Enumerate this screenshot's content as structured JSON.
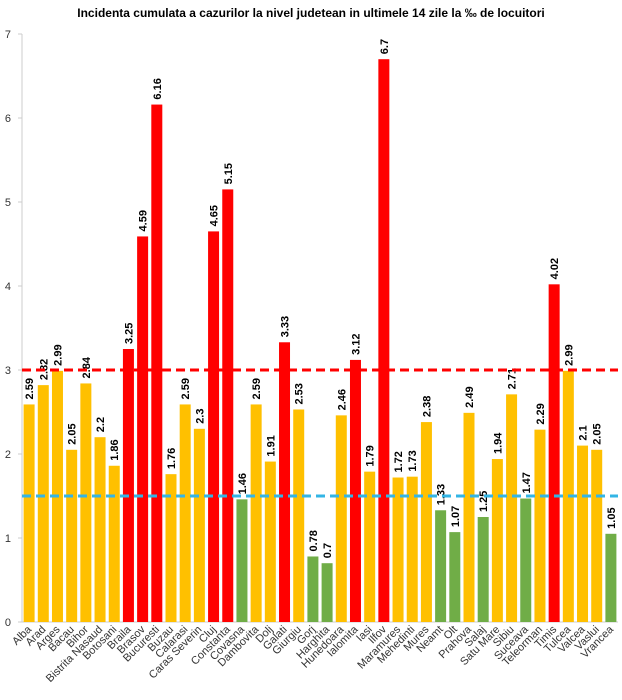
{
  "chart_data": {
    "type": "bar",
    "title": "Incidenta cumulata a cazurilor la nivel judetean in ultimele 14 zile la ‰ de locuitori",
    "categories": [
      "Alba",
      "Arad",
      "Arges",
      "Bacau",
      "Bihor",
      "Bistrita Nasaud",
      "Botosani",
      "Braila",
      "Brasov",
      "Bucuresti",
      "Buzau",
      "Calarasi",
      "Caras Severin",
      "Cluj",
      "Constanta",
      "Covasna",
      "Dambovita",
      "Dolj",
      "Galati",
      "Giurgiu",
      "Gorj",
      "Harghita",
      "Hunedoara",
      "Ialomita",
      "Iasi",
      "Ilfov",
      "Maramures",
      "Mehedinti",
      "Mures",
      "Neamt",
      "Olt",
      "Prahova",
      "Salaj",
      "Satu Mare",
      "Sibiu",
      "Suceava",
      "Teleorman",
      "Timis",
      "Tulcea",
      "Valcea",
      "Vaslui",
      "Vrancea"
    ],
    "values": [
      2.59,
      2.82,
      2.99,
      2.05,
      2.84,
      2.2,
      1.86,
      3.25,
      4.59,
      6.16,
      1.76,
      2.59,
      2.3,
      4.65,
      5.15,
      1.46,
      2.59,
      1.91,
      3.33,
      2.53,
      0.78,
      0.7,
      2.46,
      3.12,
      1.79,
      6.7,
      1.72,
      1.73,
      2.38,
      1.33,
      1.07,
      2.49,
      1.25,
      1.94,
      2.71,
      1.47,
      2.29,
      4.02,
      2.99,
      2.1,
      2.05,
      1.05
    ],
    "colors": [
      "#ffc000",
      "#ffc000",
      "#ffc000",
      "#ffc000",
      "#ffc000",
      "#ffc000",
      "#ffc000",
      "#ff0000",
      "#ff0000",
      "#ff0000",
      "#ffc000",
      "#ffc000",
      "#ffc000",
      "#ff0000",
      "#ff0000",
      "#70ad47",
      "#ffc000",
      "#ffc000",
      "#ff0000",
      "#ffc000",
      "#70ad47",
      "#70ad47",
      "#ffc000",
      "#ff0000",
      "#ffc000",
      "#ff0000",
      "#ffc000",
      "#ffc000",
      "#ffc000",
      "#70ad47",
      "#70ad47",
      "#ffc000",
      "#70ad47",
      "#ffc000",
      "#ffc000",
      "#70ad47",
      "#ffc000",
      "#ff0000",
      "#ffc000",
      "#ffc000",
      "#ffc000",
      "#70ad47"
    ],
    "reference_lines": [
      {
        "value": 3,
        "color": "#ff0000"
      },
      {
        "value": 1.5,
        "color": "#33b5e5"
      }
    ],
    "ylim": [
      0,
      7
    ],
    "yticks": [
      0,
      1,
      2,
      3,
      4,
      5,
      6,
      7
    ],
    "grid": false
  }
}
